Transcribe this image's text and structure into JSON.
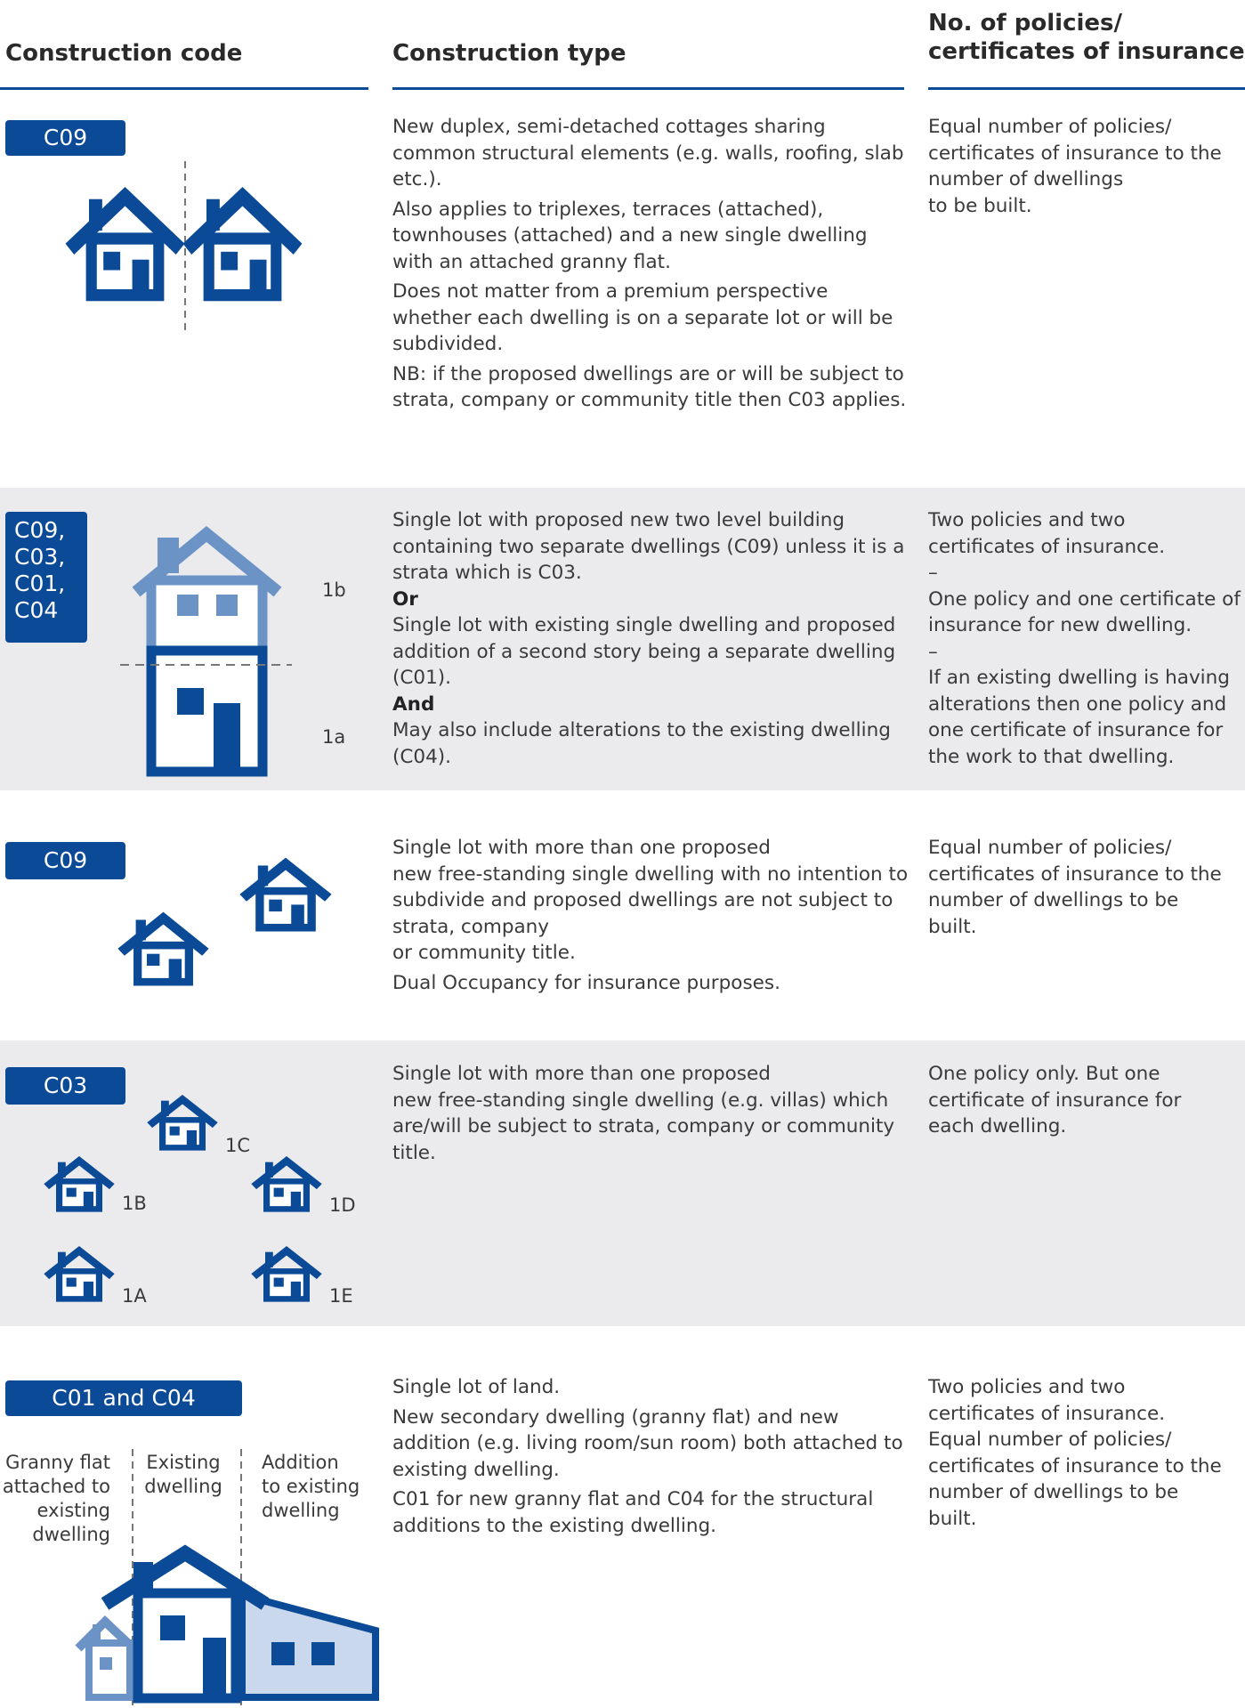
{
  "header": {
    "columns": [
      "Construction code",
      "Construction type",
      "No. of policies/\ncertificates of insurance"
    ]
  },
  "rows": [
    {
      "code": "C09",
      "type": [
        "New duplex, semi-detached cottages sharing common structural elements (e.g. walls, roofing, slab etc.).",
        "Also applies to triplexes, terraces (attached), townhouses (attached) and a new single dwelling with an attached granny flat.",
        "Does not matter from a premium perspective whether each dwelling is on a separate lot or will be subdivided.",
        "NB: if the proposed dwellings are or will be subject to strata, company or community title then C03 applies."
      ],
      "policies": [
        "Equal number of policies/ certificates of insurance to the number of dwellings\nto be built."
      ]
    },
    {
      "code": "C09,\nC03,\nC01,\nC04",
      "diagram_labels": [
        "1b",
        "1a"
      ],
      "type": [
        "Single lot with proposed new two level building containing two separate dwellings (C09) unless it is a strata which is C03.",
        "Or",
        "Single lot with existing single dwelling and proposed addition of a second story being a separate dwelling (C01).",
        "And",
        "May also include alterations to the existing dwelling (C04)."
      ],
      "policies": [
        "Two policies and two\ncertificates of insurance.",
        "–",
        "One policy and one certificate of insurance for new dwelling.",
        "–",
        "If an existing dwelling is having alterations then one policy and one certificate of insurance for the work to that dwelling."
      ]
    },
    {
      "code": "C09",
      "type": [
        "Single lot with more than one proposed\nnew free-standing single dwelling with no intention to subdivide and proposed dwellings are not subject to strata, company\nor community title.",
        "Dual Occupancy for insurance purposes."
      ],
      "policies": [
        "Equal number of policies/ certificates of insurance to the number of dwellings to be built."
      ]
    },
    {
      "code": "C03",
      "diagram_labels": [
        "1C",
        "1B",
        "1D",
        "1A",
        "1E"
      ],
      "type": [
        "Single lot with more than one proposed\nnew free-standing single dwelling (e.g. villas) which are/will be subject to strata, company or community title."
      ],
      "policies": [
        "One policy only. But one certificate of insurance for each dwelling."
      ]
    },
    {
      "code": "C01 and C04",
      "diagram_labels": [
        "Granny flat\nattached to\nexisting\ndwelling",
        "Existing\ndwelling",
        "Addition\nto existing\ndwelling"
      ],
      "type": [
        "Single lot of land.",
        "New secondary dwelling (granny flat) and new addition (e.g. living room/sun room) both attached to existing dwelling.",
        "C01 for new granny flat and C04 for the structural additions to the existing dwelling."
      ],
      "policies": [
        "Two policies and two\ncertificates of insurance.\nEqual number of policies/ certificates of insurance to the number of dwellings to be built."
      ]
    }
  ]
}
